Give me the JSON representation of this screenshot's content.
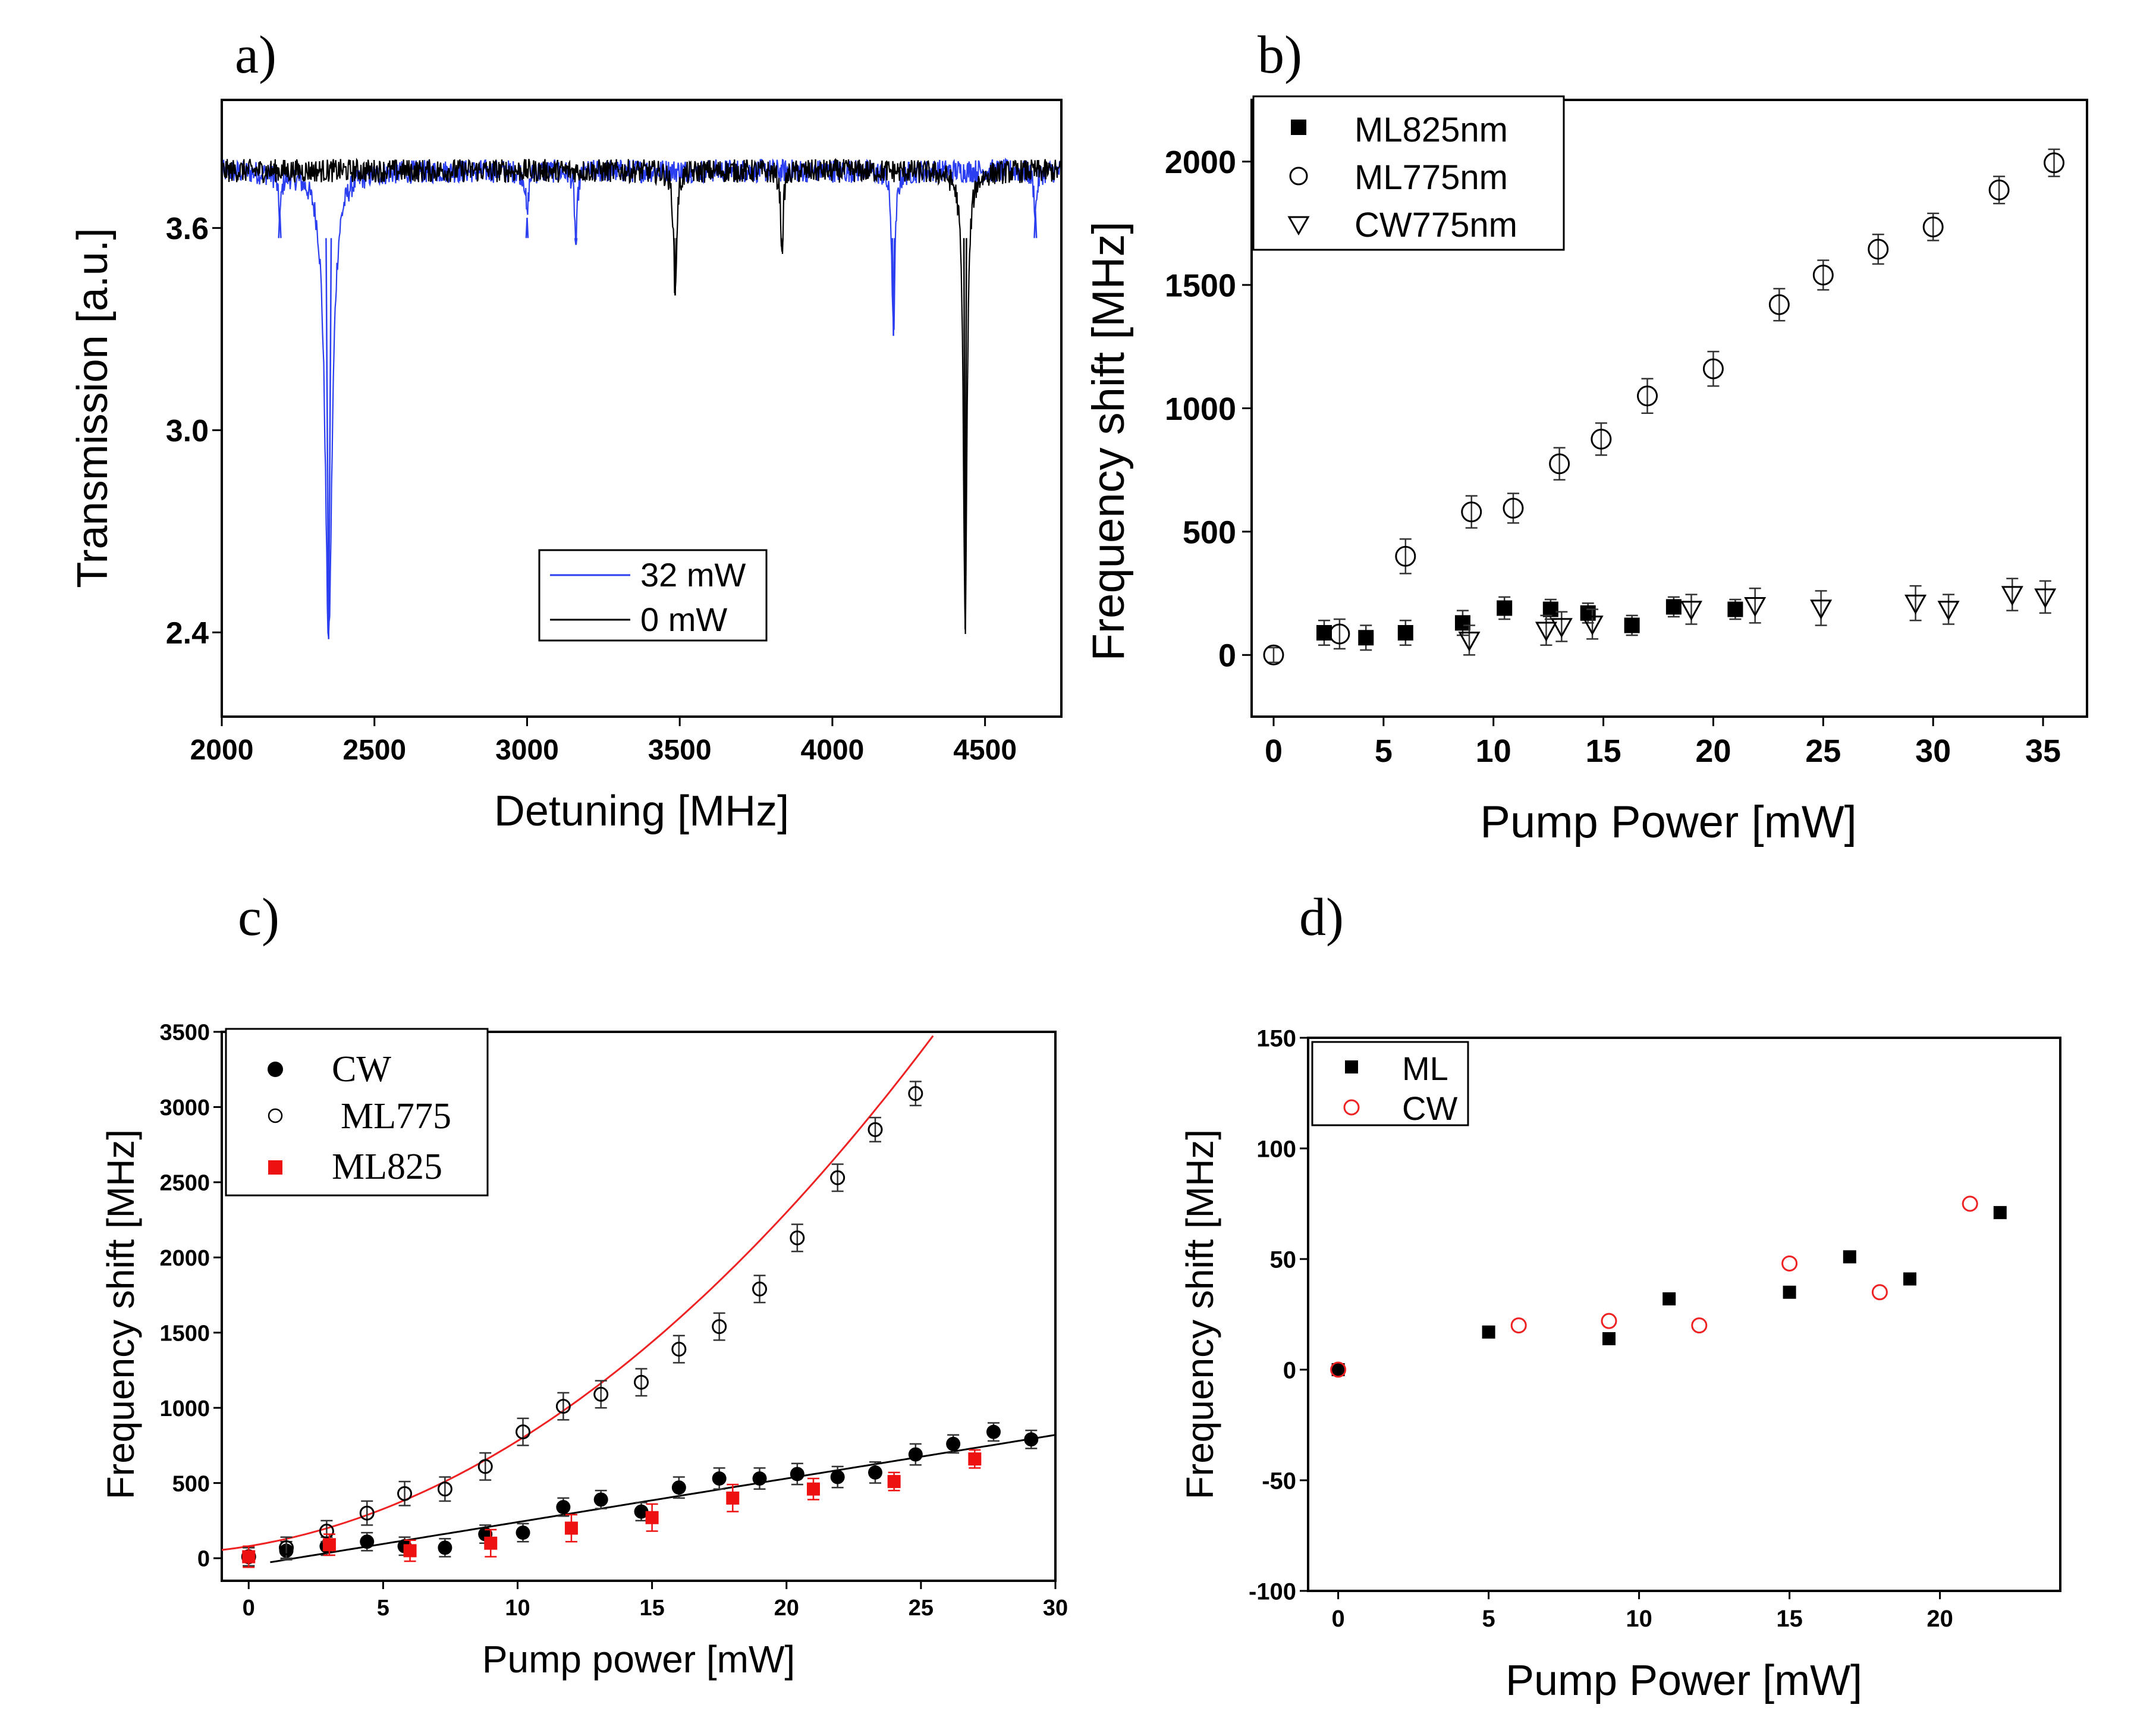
{
  "figure": {
    "background": "#ffffff",
    "axis_color": "#000000"
  },
  "chart_data": [
    {
      "panel": "a)",
      "type": "line",
      "xlabel": "Detuning [MHz]",
      "ylabel": "Transmission [a.u.]",
      "xlim": [
        2000,
        4750
      ],
      "ylim": [
        2.15,
        3.98
      ],
      "xticks": [
        2000,
        2500,
        3000,
        3500,
        4000,
        4500
      ],
      "yticks": [
        2.4,
        3.0,
        3.6
      ],
      "ytick_labels": [
        "2.4",
        "3.0",
        "3.6"
      ],
      "baseline": 3.77,
      "noise": 0.035,
      "legend": {
        "placement": "bottom-center",
        "entries": [
          "32 mW",
          "0 mW"
        ]
      },
      "series": [
        {
          "name": "32 mW",
          "color": "#2b3ff0",
          "dips": [
            {
              "center": 2350,
              "min": 2.38,
              "width": 14
            },
            {
              "center": 2190,
              "min": 3.65,
              "width": 6
            },
            {
              "center": 3000,
              "min": 3.63,
              "width": 5
            },
            {
              "center": 3160,
              "min": 3.55,
              "width": 5
            },
            {
              "center": 4200,
              "min": 3.28,
              "width": 6
            },
            {
              "center": 4665,
              "min": 3.65,
              "width": 6
            }
          ]
        },
        {
          "name": "0 mW",
          "color": "#000000",
          "dips": [
            {
              "center": 3485,
              "min": 3.4,
              "width": 6
            },
            {
              "center": 3835,
              "min": 3.53,
              "width": 5
            },
            {
              "center": 4435,
              "min": 2.41,
              "width": 7
            }
          ]
        }
      ]
    },
    {
      "panel": "b)",
      "type": "scatter",
      "xlabel": "Pump Power [mW]",
      "ylabel": "Frequency shift [MHz]",
      "xlim": [
        -1,
        37
      ],
      "ylim": [
        -250,
        2250
      ],
      "xticks": [
        0,
        5,
        10,
        15,
        20,
        25,
        30,
        35
      ],
      "yticks": [
        0,
        500,
        1000,
        1500,
        2000
      ],
      "legend": {
        "placement": "top-left",
        "entries": [
          "ML825nm",
          "ML775nm",
          "CW775nm"
        ]
      },
      "series": [
        {
          "name": "ML825nm",
          "marker": "filled-square",
          "color": "#000000",
          "x": [
            2.3,
            4.2,
            6.0,
            8.6,
            10.5,
            12.6,
            14.3,
            16.3,
            18.2,
            21.0
          ],
          "y": [
            90,
            70,
            90,
            130,
            190,
            185,
            170,
            120,
            195,
            185
          ],
          "err": [
            50,
            50,
            50,
            50,
            45,
            40,
            40,
            40,
            40,
            40
          ]
        },
        {
          "name": "ML775nm",
          "marker": "open-circle",
          "color": "#000000",
          "x": [
            0,
            3.0,
            6.0,
            9.0,
            10.9,
            13.0,
            14.9,
            17.0,
            20.0,
            23.0,
            25.0,
            27.5,
            30.0,
            33.0,
            35.5
          ],
          "y": [
            0,
            85,
            400,
            580,
            595,
            775,
            875,
            1050,
            1160,
            1420,
            1540,
            1645,
            1735,
            1885,
            1995
          ],
          "err": [
            30,
            60,
            70,
            65,
            60,
            65,
            65,
            70,
            70,
            65,
            60,
            60,
            55,
            55,
            55
          ]
        },
        {
          "name": "CW775nm",
          "marker": "open-triangle-down",
          "color": "#000000",
          "x": [
            8.9,
            12.4,
            13.1,
            14.5,
            19.0,
            21.9,
            24.9,
            29.2,
            30.7,
            33.6,
            35.1
          ],
          "y": [
            60,
            100,
            115,
            125,
            185,
            200,
            190,
            210,
            185,
            245,
            235
          ],
          "err": [
            60,
            60,
            60,
            60,
            60,
            70,
            70,
            70,
            60,
            65,
            65
          ]
        }
      ]
    },
    {
      "panel": "c)",
      "type": "scatter",
      "xlabel": "Pump  power [mW]",
      "ylabel": "Frequency shift [MHz]",
      "xlim": [
        -1,
        30
      ],
      "ylim": [
        -150,
        3500
      ],
      "xticks": [
        0,
        5,
        10,
        15,
        20,
        25,
        30
      ],
      "yticks": [
        0,
        500,
        1000,
        1500,
        2000,
        2500,
        3000,
        3500
      ],
      "legend": {
        "placement": "top-left",
        "entries": [
          "CW",
          "ML775",
          "ML825"
        ]
      },
      "series": [
        {
          "name": "CW",
          "marker": "filled-circle",
          "color": "#000000",
          "x": [
            0,
            1.4,
            2.9,
            4.4,
            5.8,
            7.3,
            8.8,
            10.2,
            11.7,
            13.1,
            14.6,
            16.0,
            17.5,
            19.0,
            20.4,
            21.9,
            23.3,
            24.8,
            26.2,
            27.7,
            29.1
          ],
          "y": [
            10,
            50,
            80,
            110,
            80,
            70,
            160,
            170,
            340,
            390,
            310,
            470,
            530,
            530,
            560,
            540,
            570,
            690,
            760,
            840,
            790
          ],
          "err": [
            60,
            60,
            60,
            60,
            60,
            60,
            60,
            60,
            60,
            60,
            60,
            70,
            70,
            70,
            70,
            70,
            70,
            70,
            60,
            60,
            60
          ]
        },
        {
          "name": "ML775",
          "marker": "open-circle",
          "color": "#000000",
          "x": [
            0,
            1.4,
            2.9,
            4.4,
            5.8,
            7.3,
            8.8,
            10.2,
            11.7,
            13.1,
            14.6,
            16.0,
            17.5,
            19.0,
            20.4,
            21.9,
            23.3,
            24.8
          ],
          "y": [
            10,
            70,
            180,
            300,
            430,
            460,
            610,
            840,
            1010,
            1090,
            1170,
            1390,
            1540,
            1790,
            2130,
            2530,
            2850,
            3090
          ],
          "err": [
            60,
            70,
            70,
            80,
            80,
            80,
            90,
            90,
            90,
            90,
            90,
            90,
            90,
            90,
            90,
            90,
            80,
            80
          ]
        },
        {
          "name": "ML825",
          "marker": "filled-square",
          "color": "#ee1111",
          "x": [
            0,
            3.0,
            6.0,
            9.0,
            12.0,
            15.0,
            18.0,
            21.0,
            24.0,
            27.0
          ],
          "y": [
            10,
            90,
            50,
            100,
            200,
            270,
            400,
            460,
            510,
            660
          ],
          "err": [
            70,
            70,
            70,
            90,
            90,
            90,
            90,
            70,
            60,
            60
          ]
        }
      ],
      "fits": [
        {
          "name": "ML775 fit",
          "color": "#ee2222",
          "kind": "quadratic",
          "coeffs": [
            80,
            29,
            4.1
          ],
          "x_range": [
            -1,
            26.6
          ]
        },
        {
          "name": "CW fit",
          "color": "#000000",
          "kind": "linear",
          "coeffs": [
            -50,
            29
          ],
          "x_range": [
            0.8,
            30
          ]
        }
      ]
    },
    {
      "panel": "d)",
      "type": "scatter",
      "xlabel": "Pump Power [mW]",
      "ylabel": "Frequency shift [MHz]",
      "xlim": [
        -1,
        24
      ],
      "ylim": [
        -100,
        150
      ],
      "xticks": [
        0,
        5,
        10,
        15,
        20
      ],
      "yticks": [
        -100,
        -50,
        0,
        50,
        100,
        150
      ],
      "legend": {
        "placement": "top-left",
        "entries": [
          "ML",
          "CW"
        ]
      },
      "series": [
        {
          "name": "ML",
          "marker": "filled-square",
          "color": "#000000",
          "x": [
            0,
            5,
            9,
            11,
            15,
            17,
            19,
            22
          ],
          "y": [
            0,
            17,
            14,
            32,
            35,
            51,
            41,
            71
          ]
        },
        {
          "name": "CW",
          "marker": "open-circle",
          "color": "#ee2222",
          "x": [
            0,
            6,
            9,
            12,
            15,
            18,
            21
          ],
          "y": [
            0,
            20,
            22,
            20,
            48,
            35,
            75
          ]
        }
      ]
    }
  ]
}
